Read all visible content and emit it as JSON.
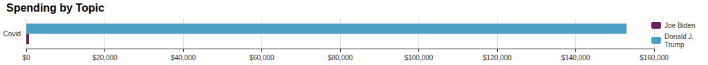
{
  "chart_data": {
    "type": "bar",
    "title": "Spending by Topic",
    "orientation": "horizontal",
    "categories": [
      "Covid"
    ],
    "series": [
      {
        "name": "Joe Biden",
        "color": "#6b1d5c",
        "values": [
          700
        ]
      },
      {
        "name": "Donald J. Trump",
        "color": "#4a9fc4",
        "values": [
          153000
        ]
      }
    ],
    "xlim": [
      0,
      160000
    ],
    "xticks": [
      {
        "value": 0,
        "label": "$0"
      },
      {
        "value": 20000,
        "label": "$20,000"
      },
      {
        "value": 40000,
        "label": "$40,000"
      },
      {
        "value": 60000,
        "label": "$60,000"
      },
      {
        "value": 80000,
        "label": "$80,000"
      },
      {
        "value": 100000,
        "label": "$100,000"
      },
      {
        "value": 120000,
        "label": "$120,000"
      },
      {
        "value": 140000,
        "label": "$140,000"
      },
      {
        "value": 160000,
        "label": "$160,000"
      }
    ],
    "grid": true,
    "legend": "right"
  }
}
